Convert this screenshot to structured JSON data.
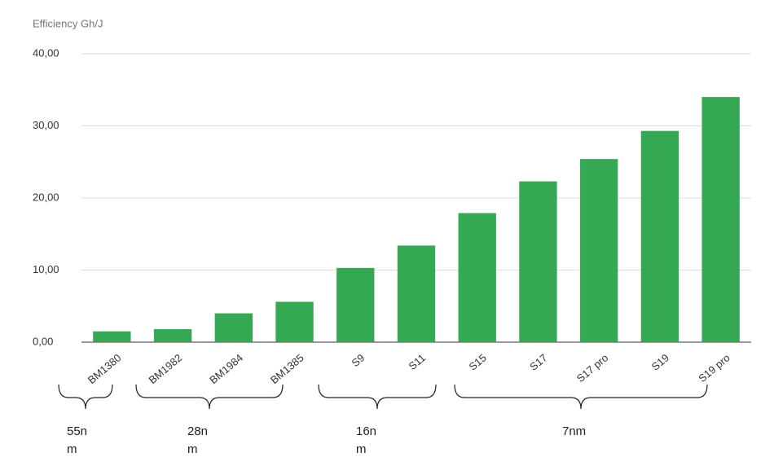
{
  "chart_data": {
    "type": "bar",
    "y_axis_label": "Efficiency Gh/J",
    "categories": [
      "BM1380",
      "BM1982",
      "BM1984",
      "BM1385",
      "S9",
      "S11",
      "S15",
      "S17",
      "S17 pro",
      "S19",
      "S19 pro"
    ],
    "values": [
      1.5,
      1.8,
      4.0,
      5.6,
      10.3,
      13.4,
      17.9,
      22.3,
      25.4,
      29.3,
      34.0
    ],
    "color": "#34a853",
    "ylim": [
      0,
      40
    ],
    "yticks": [
      {
        "value": 0,
        "label": "0,00"
      },
      {
        "value": 10,
        "label": "10,00"
      },
      {
        "value": 20,
        "label": "20,00"
      },
      {
        "value": 30,
        "label": "30,00"
      },
      {
        "value": 40,
        "label": "40,00"
      }
    ],
    "grid": true,
    "annotations": [
      "55nm",
      "28nm",
      "16nm",
      "7nm"
    ]
  }
}
